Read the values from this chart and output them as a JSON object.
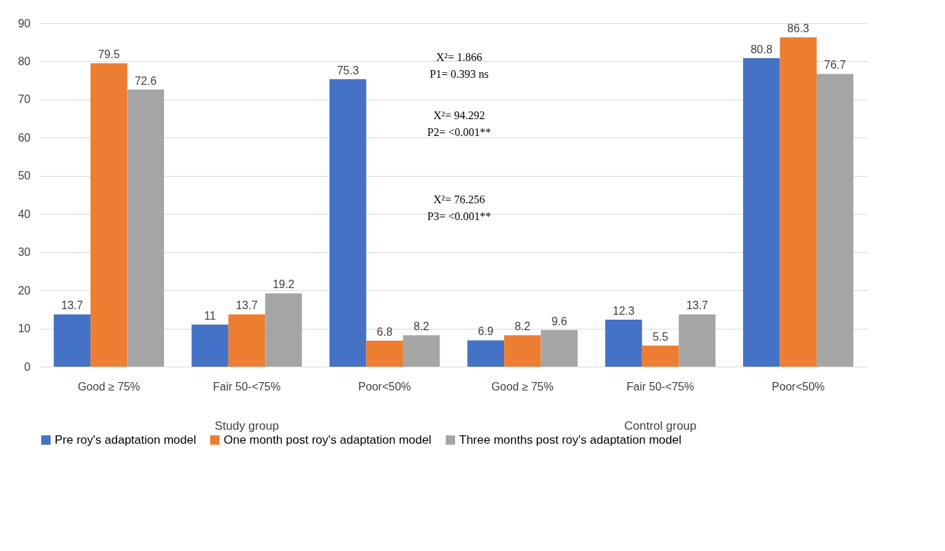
{
  "chart_data": {
    "type": "bar",
    "categories": [
      "Good ≥ 75%",
      "Fair 50-<75%",
      "Poor<50%",
      "Good ≥ 75%",
      "Fair 50-<75%",
      "Poor<50%"
    ],
    "series": [
      {
        "name": "Pre roy's adaptation model",
        "color": "#4472c4",
        "values": [
          13.7,
          11,
          75.3,
          6.9,
          12.3,
          80.8
        ]
      },
      {
        "name": "One month post roy's adaptation model",
        "color": "#ed7d31",
        "values": [
          79.5,
          13.7,
          6.8,
          8.2,
          5.5,
          86.3
        ]
      },
      {
        "name": "Three months post roy's adaptation model",
        "color": "#a5a5a5",
        "values": [
          72.6,
          19.2,
          8.2,
          9.6,
          13.7,
          76.7
        ]
      }
    ],
    "ylim": [
      0,
      90
    ],
    "yticks": [
      0,
      10,
      20,
      30,
      40,
      50,
      60,
      70,
      80,
      90
    ],
    "grid": "y",
    "legend": "bottom",
    "data_labels": true,
    "annotations": [
      "Study  group",
      "Control group",
      "X²= 1.866\nP1= 0.393 ns",
      "X²= 94.292\nP2= <0.001**",
      "X²= 76.256\nP3= <0.001**"
    ]
  }
}
